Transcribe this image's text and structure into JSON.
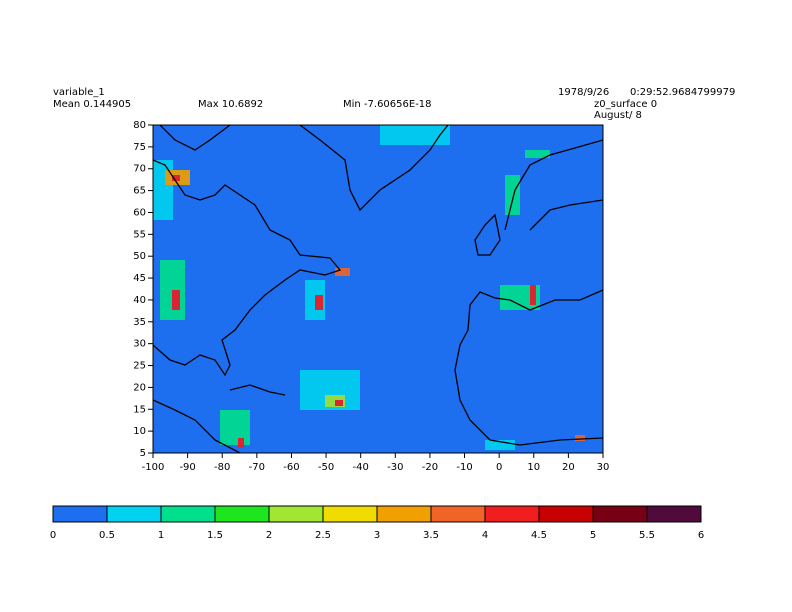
{
  "header": {
    "variable": "variable_1",
    "mean": "Mean 0.144905",
    "max": "Max 10.6892",
    "min": "Min -7.60656E-18",
    "date": "1978/9/26",
    "time": "0:29:52.9684799979",
    "level": "z0_surface 0",
    "period": "August/ 8"
  },
  "map": {
    "lon_range": [
      -100,
      30
    ],
    "lat_range": [
      5,
      80
    ],
    "lon_ticks": [
      -100,
      -90,
      -80,
      -70,
      -60,
      -50,
      -40,
      -30,
      -20,
      -10,
      0,
      10,
      20,
      30
    ],
    "lat_ticks": [
      5,
      10,
      15,
      20,
      25,
      30,
      35,
      40,
      45,
      50,
      55,
      60,
      65,
      70,
      75,
      80
    ]
  },
  "colorbar": {
    "ticks": [
      0,
      0.5,
      1,
      1.5,
      2,
      2.5,
      3,
      3.5,
      4,
      4.5,
      5,
      5.5,
      6
    ],
    "colors": [
      "#1e6ef0",
      "#00d2f0",
      "#00e08c",
      "#1ee61e",
      "#a0e632",
      "#f0dc00",
      "#f0a000",
      "#f06428",
      "#f01e1e",
      "#c80000",
      "#780014",
      "#500a3c",
      "#a000c8"
    ]
  }
}
